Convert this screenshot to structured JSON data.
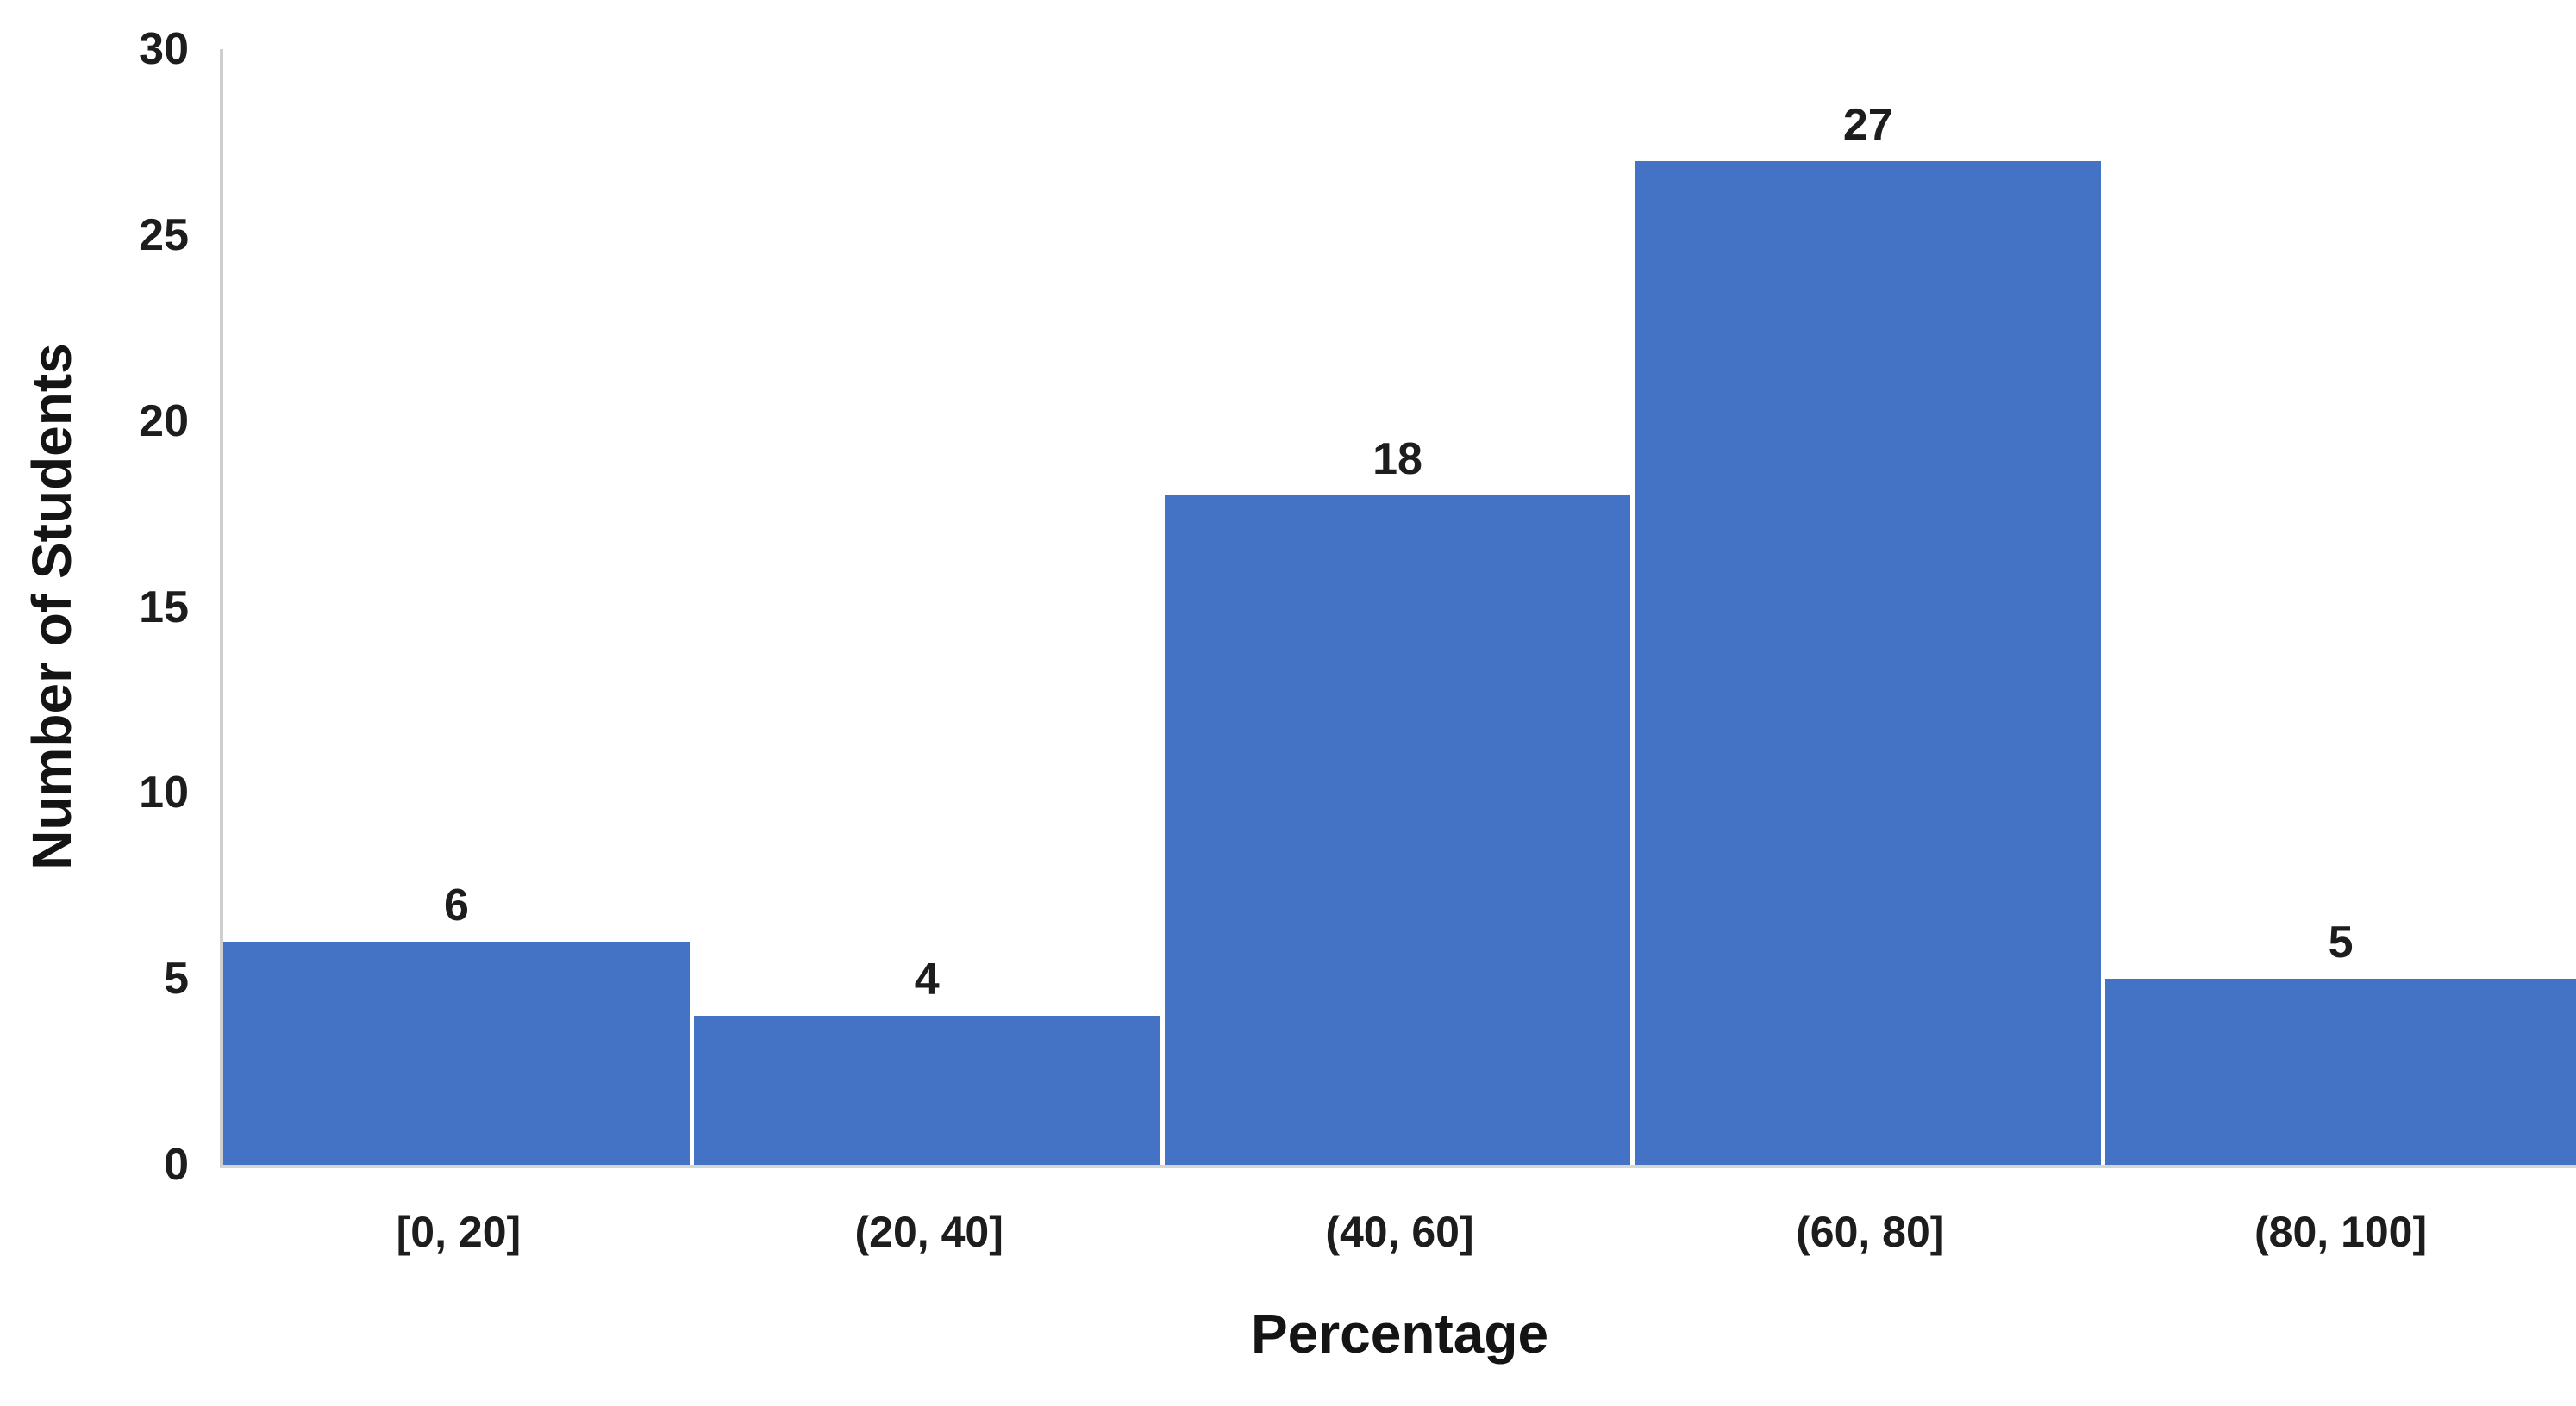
{
  "chart_data": {
    "type": "bar",
    "title": "",
    "categories": [
      "[0, 20]",
      "(20, 40]",
      "(40, 60]",
      "(60, 80]",
      "(80, 100]"
    ],
    "values": [
      6,
      4,
      18,
      27,
      5
    ],
    "xlabel": "Percentage",
    "ylabel": "Number of Students",
    "ylim": [
      0,
      30
    ],
    "y_ticks": [
      0,
      5,
      10,
      15,
      20,
      25,
      30
    ],
    "grid": "off",
    "legend": "none",
    "data_labels_shown": true,
    "bar_color": "#4473C6",
    "bar_gap_color": "#FFFFFF",
    "axis_line_color": "#CFCFCF",
    "text_color": "#1d1d1d"
  }
}
